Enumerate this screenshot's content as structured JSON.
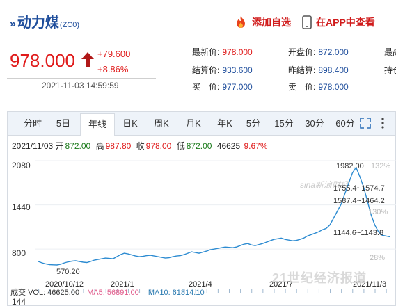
{
  "header": {
    "title": "动力煤",
    "code": "(ZC0)",
    "add_watchlist": "添加自选",
    "open_app": "在APP中查看"
  },
  "quote": {
    "price": "978.000",
    "change": "+79.600",
    "change_pct": "+8.86%",
    "time": "2021-11-03 14:59:59"
  },
  "stats": {
    "latest_label": "最新价:",
    "latest": "978.000",
    "open_label": "开盘价:",
    "open": "872.000",
    "high_label": "最高",
    "settle_label": "结算价:",
    "settle": "933.600",
    "prev_settle_label": "昨结算:",
    "prev_settle": "898.400",
    "hold_label": "持仓",
    "bid_label": "买　价:",
    "bid": "977.000",
    "ask_label": "卖　价:",
    "ask": "978.000"
  },
  "tabs": [
    "分时",
    "5日",
    "年线",
    "日K",
    "周K",
    "月K",
    "年K",
    "5分",
    "15分",
    "30分",
    "60分"
  ],
  "active_tab": "年线",
  "info_line": {
    "date": "2021/11/03",
    "open_label": "开",
    "open": "872.00",
    "high_label": "高",
    "high": "987.80",
    "close_label": "收",
    "close": "978.00",
    "low_label": "低",
    "low": "872.00",
    "volume": "46625",
    "pct": "9.67%"
  },
  "volume_line": {
    "label": "成交",
    "vol": "VOL: 46625.00",
    "ma5": "MA5: 56891.00",
    "ma10": "MA10: 61814.10"
  },
  "vol_axis_tick": "144",
  "annotations": {
    "max": "1982.00",
    "min": "570.20",
    "band1": "1755.4~1574.7",
    "band2": "1587.4~1464.2",
    "band3": "1144.6~1143.8",
    "pct1": "132%",
    "pct2": "130%",
    "pct3": "28%"
  },
  "watermarks": {
    "sina": "sina新浪财经",
    "paper": "21世纪经济报道"
  },
  "colors": {
    "accent_blue": "#1f4e9c",
    "up_red": "#e01b1b",
    "line": "#2c8bd1"
  },
  "chart_data": {
    "type": "line",
    "y_ticks": [
      "2080",
      "1440",
      "800"
    ],
    "x_ticks": [
      "2020/10/12",
      "2021/1",
      "2021/4",
      "2021/7",
      "2021/11/3"
    ],
    "ylim": [
      570,
      2080
    ],
    "series": [
      {
        "values": [
          620,
          600,
          585,
          575,
          572,
          570,
          580,
          600,
          615,
          625,
          630,
          620,
          610,
          605,
          620,
          640,
          650,
          660,
          670,
          665,
          660,
          690,
          720,
          740,
          730,
          715,
          700,
          690,
          695,
          705,
          710,
          700,
          690,
          680,
          670,
          675,
          690,
          700,
          705,
          720,
          740,
          760,
          750,
          740,
          755,
          770,
          790,
          800,
          810,
          820,
          830,
          825,
          820,
          830,
          850,
          870,
          880,
          860,
          850,
          865,
          880,
          900,
          920,
          940,
          950,
          960,
          940,
          930,
          920,
          925,
          940,
          960,
          990,
          1010,
          1030,
          1050,
          1080,
          1100,
          1150,
          1250,
          1350,
          1450,
          1600,
          1750,
          1900,
          1982,
          1850,
          1700,
          1500,
          1300,
          1150,
          1050,
          1000,
          990,
          978
        ]
      }
    ]
  }
}
